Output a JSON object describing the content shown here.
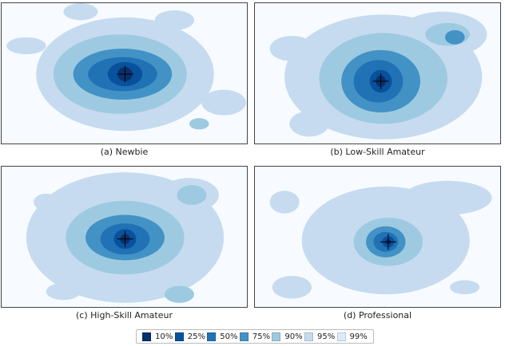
{
  "chart_data": [
    {
      "type": "heatmap",
      "caption": "(a) Newbie",
      "center_marker": "crosshair",
      "blobs": [
        {
          "cx": 0.5,
          "cy": 0.5,
          "rx": 0.36,
          "ry": 0.4,
          "level": 6
        },
        {
          "cx": 0.48,
          "cy": 0.5,
          "rx": 0.27,
          "ry": 0.28,
          "level": 5
        },
        {
          "cx": 0.49,
          "cy": 0.5,
          "rx": 0.2,
          "ry": 0.18,
          "level": 4
        },
        {
          "cx": 0.49,
          "cy": 0.5,
          "rx": 0.14,
          "ry": 0.12,
          "level": 3
        },
        {
          "cx": 0.5,
          "cy": 0.5,
          "rx": 0.07,
          "ry": 0.085,
          "level": 2
        },
        {
          "cx": 0.5,
          "cy": 0.5,
          "rx": 0.03,
          "ry": 0.05,
          "level": 1
        },
        {
          "cx": 0.32,
          "cy": 0.06,
          "rx": 0.07,
          "ry": 0.06,
          "level": 6
        },
        {
          "cx": 0.7,
          "cy": 0.12,
          "rx": 0.08,
          "ry": 0.07,
          "level": 6
        },
        {
          "cx": 0.9,
          "cy": 0.7,
          "rx": 0.09,
          "ry": 0.09,
          "level": 6
        },
        {
          "cx": 0.1,
          "cy": 0.3,
          "rx": 0.08,
          "ry": 0.06,
          "level": 6
        },
        {
          "cx": 0.8,
          "cy": 0.85,
          "rx": 0.04,
          "ry": 0.04,
          "level": 5
        }
      ]
    },
    {
      "type": "heatmap",
      "caption": "(b) Low-Skill Amateur",
      "center_marker": "crosshair",
      "blobs": [
        {
          "cx": 0.52,
          "cy": 0.52,
          "rx": 0.4,
          "ry": 0.44,
          "level": 6
        },
        {
          "cx": 0.76,
          "cy": 0.22,
          "rx": 0.18,
          "ry": 0.16,
          "level": 6
        },
        {
          "cx": 0.52,
          "cy": 0.53,
          "rx": 0.26,
          "ry": 0.32,
          "level": 5
        },
        {
          "cx": 0.78,
          "cy": 0.22,
          "rx": 0.09,
          "ry": 0.08,
          "level": 5
        },
        {
          "cx": 0.51,
          "cy": 0.55,
          "rx": 0.16,
          "ry": 0.22,
          "level": 4
        },
        {
          "cx": 0.81,
          "cy": 0.24,
          "rx": 0.04,
          "ry": 0.05,
          "level": 4
        },
        {
          "cx": 0.5,
          "cy": 0.55,
          "rx": 0.1,
          "ry": 0.15,
          "level": 3
        },
        {
          "cx": 0.51,
          "cy": 0.55,
          "rx": 0.045,
          "ry": 0.08,
          "level": 2
        },
        {
          "cx": 0.51,
          "cy": 0.55,
          "rx": 0.02,
          "ry": 0.04,
          "level": 1
        },
        {
          "cx": 0.22,
          "cy": 0.85,
          "rx": 0.08,
          "ry": 0.09,
          "level": 6
        },
        {
          "cx": 0.15,
          "cy": 0.32,
          "rx": 0.09,
          "ry": 0.09,
          "level": 6
        }
      ]
    },
    {
      "type": "heatmap",
      "caption": "(c) High-Skill Amateur",
      "center_marker": "crosshair",
      "blobs": [
        {
          "cx": 0.5,
          "cy": 0.5,
          "rx": 0.4,
          "ry": 0.46,
          "level": 6
        },
        {
          "cx": 0.76,
          "cy": 0.2,
          "rx": 0.12,
          "ry": 0.12,
          "level": 6
        },
        {
          "cx": 0.5,
          "cy": 0.5,
          "rx": 0.24,
          "ry": 0.26,
          "level": 5
        },
        {
          "cx": 0.77,
          "cy": 0.2,
          "rx": 0.06,
          "ry": 0.07,
          "level": 5
        },
        {
          "cx": 0.5,
          "cy": 0.5,
          "rx": 0.16,
          "ry": 0.16,
          "level": 4
        },
        {
          "cx": 0.5,
          "cy": 0.51,
          "rx": 0.1,
          "ry": 0.11,
          "level": 3
        },
        {
          "cx": 0.5,
          "cy": 0.51,
          "rx": 0.045,
          "ry": 0.07,
          "level": 2
        },
        {
          "cx": 0.5,
          "cy": 0.51,
          "rx": 0.02,
          "ry": 0.035,
          "level": 1
        },
        {
          "cx": 0.25,
          "cy": 0.88,
          "rx": 0.07,
          "ry": 0.06,
          "level": 6
        },
        {
          "cx": 0.72,
          "cy": 0.9,
          "rx": 0.06,
          "ry": 0.06,
          "level": 5
        },
        {
          "cx": 0.18,
          "cy": 0.25,
          "rx": 0.05,
          "ry": 0.06,
          "level": 6
        }
      ]
    },
    {
      "type": "heatmap",
      "caption": "(d) Professional",
      "center_marker": "crosshair",
      "blobs": [
        {
          "cx": 0.53,
          "cy": 0.52,
          "rx": 0.34,
          "ry": 0.38,
          "level": 6
        },
        {
          "cx": 0.78,
          "cy": 0.22,
          "rx": 0.18,
          "ry": 0.12,
          "level": 6
        },
        {
          "cx": 0.54,
          "cy": 0.53,
          "rx": 0.14,
          "ry": 0.17,
          "level": 5
        },
        {
          "cx": 0.53,
          "cy": 0.53,
          "rx": 0.08,
          "ry": 0.11,
          "level": 4
        },
        {
          "cx": 0.53,
          "cy": 0.53,
          "rx": 0.05,
          "ry": 0.07,
          "level": 3
        },
        {
          "cx": 0.54,
          "cy": 0.53,
          "rx": 0.025,
          "ry": 0.04,
          "level": 2
        },
        {
          "cx": 0.54,
          "cy": 0.53,
          "rx": 0.012,
          "ry": 0.02,
          "level": 1
        },
        {
          "cx": 0.15,
          "cy": 0.85,
          "rx": 0.08,
          "ry": 0.08,
          "level": 6
        },
        {
          "cx": 0.12,
          "cy": 0.25,
          "rx": 0.06,
          "ry": 0.08,
          "level": 6
        },
        {
          "cx": 0.85,
          "cy": 0.85,
          "rx": 0.06,
          "ry": 0.05,
          "level": 6
        }
      ]
    }
  ],
  "legend": {
    "items": [
      {
        "label": "10%",
        "color": "#08306b"
      },
      {
        "label": "25%",
        "color": "#08519c"
      },
      {
        "label": "50%",
        "color": "#2171b5"
      },
      {
        "label": "75%",
        "color": "#4292c6"
      },
      {
        "label": "90%",
        "color": "#9ecae1"
      },
      {
        "label": "95%",
        "color": "#c6dbef"
      },
      {
        "label": "99%",
        "color": "#deebf7"
      }
    ]
  },
  "background_color": "#f7fbff"
}
